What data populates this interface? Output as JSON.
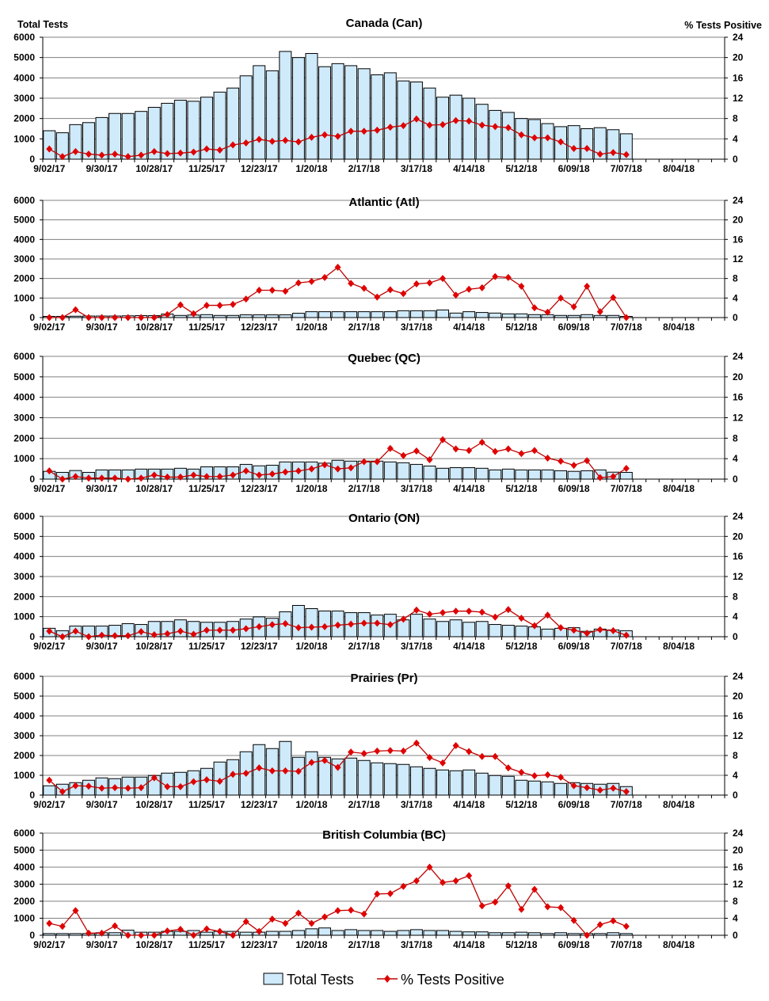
{
  "colors": {
    "bar_fill": "#cfeafa",
    "bar_stroke": "#000000",
    "line": "#c00000",
    "marker": "#e00000",
    "grid": "#808080"
  },
  "legend": {
    "bars": "Total Tests",
    "line": "% Tests Positive"
  },
  "chart_data": [
    {
      "type": "bar+line",
      "title": "Canada (Can)",
      "ylabel": "Total Tests",
      "y2label": "% Tests Positive",
      "ylim": [
        0,
        6000
      ],
      "y2lim": [
        0,
        24
      ],
      "yticks": [
        "0",
        "1000",
        "2000",
        "3000",
        "4000",
        "5000",
        "6000"
      ],
      "y2ticks": [
        "0",
        "4",
        "8",
        "12",
        "16",
        "20",
        "24"
      ],
      "xticks": [
        "9/02/17",
        "9/30/17",
        "10/28/17",
        "11/25/17",
        "12/23/17",
        "1/20/18",
        "2/17/18",
        "3/17/18",
        "4/14/18",
        "5/12/18",
        "6/09/18",
        "7/07/18",
        "8/04/18"
      ],
      "total_tests": [
        1400,
        1300,
        1700,
        1800,
        2050,
        2250,
        2250,
        2350,
        2550,
        2750,
        2900,
        2850,
        3050,
        3300,
        3500,
        4100,
        4600,
        4350,
        5300,
        5000,
        5200,
        4550,
        4700,
        4600,
        4450,
        4150,
        4250,
        3850,
        3800,
        3500,
        3050,
        3150,
        3000,
        2700,
        2400,
        2300,
        2000,
        1950,
        1750,
        1600,
        1650,
        1500,
        1550,
        1450,
        1250
      ],
      "pct_positive": [
        2.0,
        0.5,
        1.5,
        1.0,
        0.8,
        1.0,
        0.5,
        0.8,
        1.5,
        1.1,
        1.2,
        1.4,
        2.0,
        1.8,
        2.8,
        3.2,
        3.9,
        3.5,
        3.7,
        3.4,
        4.3,
        4.8,
        4.5,
        5.5,
        5.5,
        5.7,
        6.3,
        6.6,
        7.9,
        6.7,
        6.8,
        7.6,
        7.5,
        6.7,
        6.4,
        6.2,
        4.8,
        4.2,
        4.2,
        3.4,
        2.1,
        2.1,
        1.0,
        1.3,
        0.9
      ]
    },
    {
      "type": "bar+line",
      "title": "Atlantic (Atl)",
      "ylim": [
        0,
        6000
      ],
      "y2lim": [
        0,
        24
      ],
      "yticks": [
        "0",
        "1000",
        "2000",
        "3000",
        "4000",
        "5000",
        "6000"
      ],
      "y2ticks": [
        "0",
        "4",
        "8",
        "12",
        "16",
        "20",
        "24"
      ],
      "xticks": [
        "9/02/17",
        "9/30/17",
        "10/28/17",
        "11/25/17",
        "12/23/17",
        "1/20/18",
        "2/17/18",
        "3/17/18",
        "4/14/18",
        "5/12/18",
        "6/09/18",
        "7/07/18",
        "8/04/18"
      ],
      "total_tests": [
        60,
        60,
        70,
        80,
        80,
        80,
        90,
        100,
        100,
        180,
        110,
        130,
        150,
        110,
        110,
        140,
        140,
        140,
        140,
        220,
        300,
        300,
        300,
        300,
        300,
        300,
        300,
        350,
        350,
        350,
        390,
        230,
        300,
        260,
        230,
        190,
        190,
        150,
        150,
        110,
        110,
        150,
        110,
        110,
        60
      ],
      "pct_positive": [
        0,
        0,
        1.6,
        0,
        0,
        0,
        0,
        0,
        0,
        0.6,
        2.6,
        0.8,
        2.5,
        2.5,
        2.7,
        3.8,
        5.6,
        5.6,
        5.4,
        7.1,
        7.4,
        8.2,
        10.3,
        7.0,
        6.0,
        4.2,
        5.7,
        4.9,
        6.9,
        7.1,
        8.0,
        4.6,
        5.8,
        6.1,
        8.4,
        8.2,
        6.4,
        2.0,
        1.1,
        4.0,
        2.2,
        6.4,
        1.2,
        4.1,
        0
      ]
    },
    {
      "type": "bar+line",
      "title": "Quebec (QC)",
      "ylim": [
        0,
        6000
      ],
      "y2lim": [
        0,
        24
      ],
      "yticks": [
        "0",
        "1000",
        "2000",
        "3000",
        "4000",
        "5000",
        "6000"
      ],
      "y2ticks": [
        "0",
        "4",
        "8",
        "12",
        "16",
        "20",
        "24"
      ],
      "xticks": [
        "9/02/17",
        "9/30/17",
        "10/28/17",
        "11/25/17",
        "12/23/17",
        "1/20/18",
        "2/17/18",
        "3/17/18",
        "4/14/18",
        "5/12/18",
        "6/09/18",
        "7/07/18",
        "8/04/18"
      ],
      "total_tests": [
        380,
        330,
        420,
        330,
        450,
        450,
        450,
        490,
        490,
        490,
        530,
        490,
        600,
        600,
        600,
        720,
        650,
        680,
        840,
        840,
        840,
        780,
        920,
        880,
        880,
        880,
        840,
        800,
        720,
        640,
        530,
        560,
        560,
        530,
        450,
        490,
        450,
        450,
        450,
        410,
        380,
        410,
        450,
        340,
        330
      ],
      "pct_positive": [
        1.6,
        0,
        0.5,
        0.2,
        0.2,
        0.2,
        0,
        0.2,
        0.8,
        0.4,
        0.4,
        0.8,
        0.5,
        0.5,
        0.8,
        1.6,
        0.8,
        1.0,
        1.4,
        1.6,
        2.0,
        2.8,
        2.0,
        2.2,
        3.4,
        3.4,
        6.0,
        4.6,
        5.5,
        3.8,
        7.7,
        5.9,
        5.6,
        7.2,
        5.4,
        5.9,
        5.0,
        5.6,
        4.1,
        3.5,
        2.7,
        3.6,
        0.3,
        0.5,
        2.1
      ]
    },
    {
      "type": "bar+line",
      "title": "Ontario (ON)",
      "ylim": [
        0,
        6000
      ],
      "y2lim": [
        0,
        24
      ],
      "yticks": [
        "0",
        "1000",
        "2000",
        "3000",
        "4000",
        "5000",
        "6000"
      ],
      "y2ticks": [
        "0",
        "4",
        "8",
        "12",
        "16",
        "20",
        "24"
      ],
      "xticks": [
        "9/02/17",
        "9/30/17",
        "10/28/17",
        "11/25/17",
        "12/23/17",
        "1/20/18",
        "2/17/18",
        "3/17/18",
        "4/14/18",
        "5/12/18",
        "6/09/18",
        "7/07/18",
        "8/04/18"
      ],
      "total_tests": [
        420,
        300,
        530,
        530,
        530,
        570,
        650,
        610,
        760,
        760,
        840,
        760,
        720,
        720,
        760,
        880,
        990,
        920,
        1240,
        1560,
        1400,
        1280,
        1280,
        1200,
        1200,
        1080,
        1120,
        840,
        1120,
        880,
        760,
        840,
        720,
        760,
        610,
        570,
        530,
        490,
        380,
        420,
        450,
        270,
        380,
        340,
        300
      ],
      "pct_positive": [
        1.1,
        0,
        1.1,
        0,
        0.3,
        0.2,
        0.2,
        1.0,
        0.4,
        0.6,
        1.1,
        0.5,
        1.3,
        1.3,
        1.3,
        1.6,
        2.0,
        2.4,
        2.6,
        1.8,
        1.9,
        2.0,
        2.3,
        2.5,
        2.7,
        2.7,
        2.4,
        3.5,
        5.3,
        4.5,
        4.8,
        5.1,
        5.1,
        4.9,
        3.9,
        5.4,
        3.7,
        2.2,
        4.3,
        1.8,
        1.3,
        0.7,
        1.4,
        1.2,
        0.3
      ]
    },
    {
      "type": "bar+line",
      "title": "Prairies (Pr)",
      "ylim": [
        0,
        6000
      ],
      "y2lim": [
        0,
        24
      ],
      "yticks": [
        "0",
        "1000",
        "2000",
        "3000",
        "4000",
        "5000",
        "6000"
      ],
      "y2ticks": [
        "0",
        "4",
        "8",
        "12",
        "16",
        "20",
        "24"
      ],
      "xticks": [
        "9/02/17",
        "9/30/17",
        "10/28/17",
        "11/25/17",
        "12/23/17",
        "1/20/18",
        "2/17/18",
        "3/17/18",
        "4/14/18",
        "5/12/18",
        "6/09/18",
        "7/07/18",
        "8/04/18"
      ],
      "total_tests": [
        470,
        550,
        630,
        750,
        870,
        830,
        910,
        910,
        990,
        1110,
        1150,
        1230,
        1350,
        1670,
        1790,
        2190,
        2550,
        2350,
        2710,
        1910,
        2190,
        1910,
        1830,
        1870,
        1750,
        1630,
        1590,
        1550,
        1430,
        1350,
        1270,
        1230,
        1270,
        1110,
        990,
        950,
        750,
        710,
        670,
        590,
        630,
        590,
        550,
        590,
        430
      ],
      "pct_positive": [
        3.0,
        0.7,
        1.9,
        1.8,
        1.4,
        1.5,
        1.4,
        1.5,
        3.5,
        1.7,
        1.7,
        2.7,
        3.1,
        2.8,
        4.2,
        4.4,
        5.5,
        4.9,
        4.9,
        4.8,
        6.6,
        7.0,
        5.6,
        8.7,
        8.4,
        8.9,
        9.0,
        8.9,
        10.5,
        7.6,
        6.5,
        10.0,
        8.8,
        7.8,
        7.8,
        5.5,
        4.6,
        3.9,
        4.1,
        3.6,
        1.9,
        1.5,
        1.0,
        1.4,
        0.7
      ]
    },
    {
      "type": "bar+line",
      "title": "British Columbia (BC)",
      "ylim": [
        0,
        6000
      ],
      "y2lim": [
        0,
        24
      ],
      "yticks": [
        "0",
        "1000",
        "2000",
        "3000",
        "4000",
        "5000",
        "6000"
      ],
      "y2ticks": [
        "0",
        "4",
        "8",
        "12",
        "16",
        "20",
        "24"
      ],
      "xticks": [
        "9/02/17",
        "9/30/17",
        "10/28/17",
        "11/25/17",
        "12/23/17",
        "1/20/18",
        "2/17/18",
        "3/17/18",
        "4/14/18",
        "5/12/18",
        "6/09/18",
        "7/07/18",
        "8/04/18"
      ],
      "total_tests": [
        100,
        100,
        100,
        100,
        150,
        150,
        300,
        180,
        180,
        230,
        230,
        280,
        180,
        230,
        230,
        180,
        180,
        230,
        230,
        280,
        380,
        430,
        280,
        330,
        280,
        280,
        230,
        280,
        330,
        280,
        280,
        230,
        200,
        200,
        150,
        150,
        180,
        150,
        100,
        150,
        100,
        100,
        100,
        150,
        100
      ],
      "pct_positive": [
        2.8,
        2.1,
        5.8,
        0.5,
        0.5,
        2.2,
        0,
        0,
        0,
        1.0,
        1.4,
        0,
        1.5,
        0.9,
        0,
        3.2,
        0.9,
        3.8,
        2.8,
        5.2,
        2.8,
        4.3,
        5.8,
        5.9,
        5.0,
        9.7,
        9.8,
        11.5,
        12.8,
        16.0,
        12.4,
        12.8,
        14.0,
        6.9,
        7.8,
        11.6,
        6.1,
        10.8,
        6.7,
        6.5,
        3.5,
        0,
        2.5,
        3.4,
        2.1
      ]
    }
  ]
}
